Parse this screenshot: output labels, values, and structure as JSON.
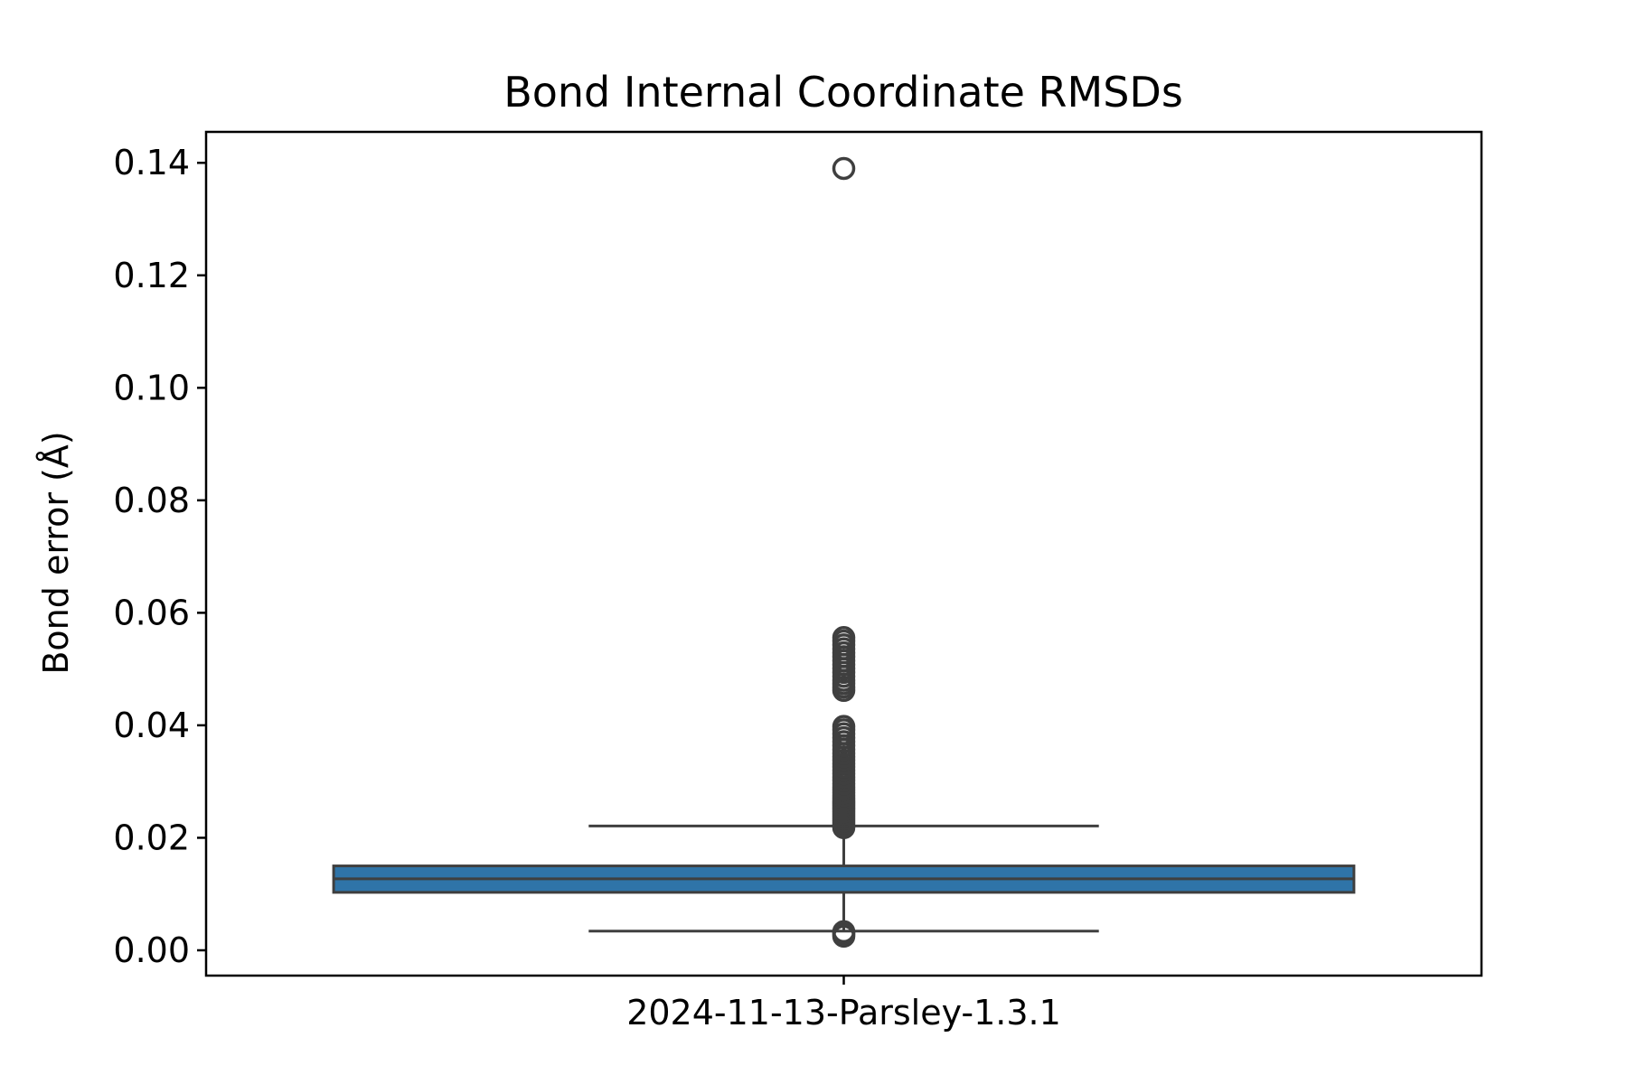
{
  "chart_data": {
    "type": "box",
    "title": "Bond Internal Coordinate RMSDs",
    "xlabel": "",
    "ylabel": "Bond error (Å)",
    "ylim": [
      -0.0045,
      0.1455
    ],
    "yticks": [
      0.0,
      0.02,
      0.04,
      0.06,
      0.08,
      0.1,
      0.12,
      0.14
    ],
    "ytick_labels": [
      "0.00",
      "0.02",
      "0.04",
      "0.06",
      "0.08",
      "0.10",
      "0.12",
      "0.14"
    ],
    "grid": false,
    "legend": "none",
    "colors": {
      "box_fill": "#2f74a8",
      "line": "#3f3f3f",
      "axis": "#000000"
    },
    "categories": [
      "2024-11-13-Parsley-1.3.1"
    ],
    "boxes": [
      {
        "category": "2024-11-13-Parsley-1.3.1",
        "whisker_low": 0.0034,
        "q1": 0.0103,
        "median": 0.0127,
        "q3": 0.015,
        "whisker_high": 0.0221,
        "outliers": [
          0.0025,
          0.0028,
          0.0031,
          0.0033,
          0.0218,
          0.0222,
          0.0226,
          0.023,
          0.0234,
          0.0238,
          0.0242,
          0.0246,
          0.025,
          0.0254,
          0.0258,
          0.0262,
          0.0266,
          0.027,
          0.0275,
          0.028,
          0.0285,
          0.029,
          0.0296,
          0.0302,
          0.0308,
          0.0314,
          0.032,
          0.0326,
          0.0332,
          0.0338,
          0.0344,
          0.035,
          0.0357,
          0.0364,
          0.0371,
          0.0378,
          0.0385,
          0.0392,
          0.0398,
          0.0462,
          0.0468,
          0.0474,
          0.048,
          0.0487,
          0.0494,
          0.0501,
          0.0508,
          0.0515,
          0.0522,
          0.0529,
          0.0536,
          0.0543,
          0.055,
          0.0556,
          0.139
        ]
      }
    ]
  }
}
